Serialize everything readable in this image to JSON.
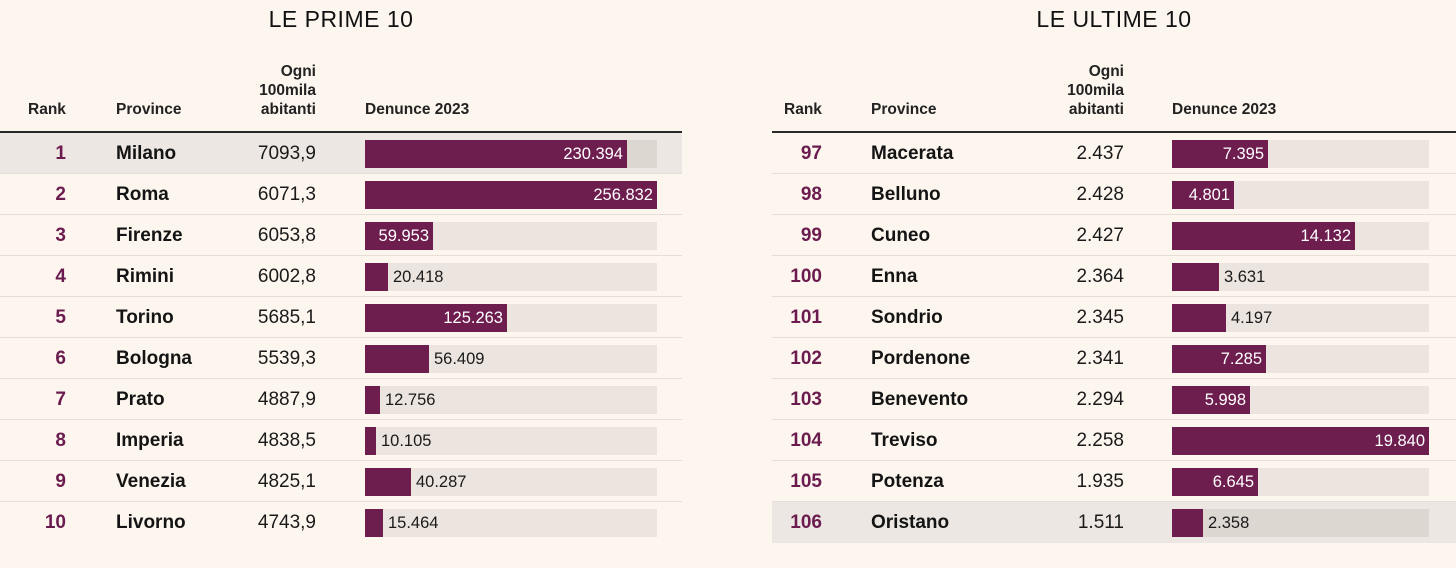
{
  "chart_data": [
    {
      "type": "table",
      "title": "LE PRIME 10",
      "headers": {
        "rank": "Rank",
        "province": "Province",
        "rate": "Ogni\n100mila\nabitanti",
        "complaints": "Denunce 2023"
      },
      "max": 256832,
      "highlight_index": 0,
      "rows": [
        {
          "rank": "1",
          "province": "Milano",
          "rate": "7093,9",
          "value": 230394,
          "label": "230.394"
        },
        {
          "rank": "2",
          "province": "Roma",
          "rate": "6071,3",
          "value": 256832,
          "label": "256.832"
        },
        {
          "rank": "3",
          "province": "Firenze",
          "rate": "6053,8",
          "value": 59953,
          "label": "59.953"
        },
        {
          "rank": "4",
          "province": "Rimini",
          "rate": "6002,8",
          "value": 20418,
          "label": "20.418"
        },
        {
          "rank": "5",
          "province": "Torino",
          "rate": "5685,1",
          "value": 125263,
          "label": "125.263"
        },
        {
          "rank": "6",
          "province": "Bologna",
          "rate": "5539,3",
          "value": 56409,
          "label": "56.409"
        },
        {
          "rank": "7",
          "province": "Prato",
          "rate": "4887,9",
          "value": 12756,
          "label": "12.756"
        },
        {
          "rank": "8",
          "province": "Imperia",
          "rate": "4838,5",
          "value": 10105,
          "label": "10.105"
        },
        {
          "rank": "9",
          "province": "Venezia",
          "rate": "4825,1",
          "value": 40287,
          "label": "40.287"
        },
        {
          "rank": "10",
          "province": "Livorno",
          "rate": "4743,9",
          "value": 15464,
          "label": "15.464"
        }
      ]
    },
    {
      "type": "table",
      "title": "LE ULTIME 10",
      "headers": {
        "rank": "Rank",
        "province": "Province",
        "rate": "Ogni\n100mila\nabitanti",
        "complaints": "Denunce 2023"
      },
      "max": 19840,
      "highlight_index": 9,
      "rows": [
        {
          "rank": "97",
          "province": "Macerata",
          "rate": "2.437",
          "value": 7395,
          "label": "7.395"
        },
        {
          "rank": "98",
          "province": "Belluno",
          "rate": "2.428",
          "value": 4801,
          "label": "4.801"
        },
        {
          "rank": "99",
          "province": "Cuneo",
          "rate": "2.427",
          "value": 14132,
          "label": "14.132"
        },
        {
          "rank": "100",
          "province": "Enna",
          "rate": "2.364",
          "value": 3631,
          "label": "3.631"
        },
        {
          "rank": "101",
          "province": "Sondrio",
          "rate": "2.345",
          "value": 4197,
          "label": "4.197"
        },
        {
          "rank": "102",
          "province": "Pordenone",
          "rate": "2.341",
          "value": 7285,
          "label": "7.285"
        },
        {
          "rank": "103",
          "province": "Benevento",
          "rate": "2.294",
          "value": 5998,
          "label": "5.998"
        },
        {
          "rank": "104",
          "province": "Treviso",
          "rate": "2.258",
          "value": 19840,
          "label": "19.840"
        },
        {
          "rank": "105",
          "province": "Potenza",
          "rate": "1.935",
          "value": 6645,
          "label": "6.645"
        },
        {
          "rank": "106",
          "province": "Oristano",
          "rate": "1.511",
          "value": 2358,
          "label": "2.358"
        }
      ]
    }
  ],
  "colors": {
    "bar": "#6e1d4f",
    "track": "#ece4de",
    "rank_text": "#6b1b4e",
    "background": "#fdf6ef"
  }
}
